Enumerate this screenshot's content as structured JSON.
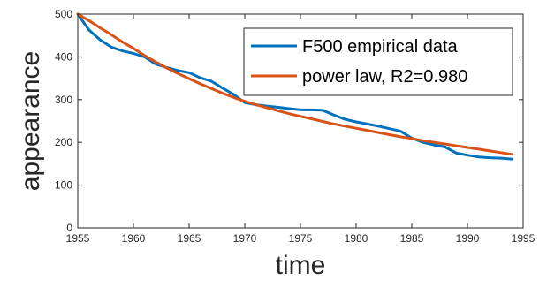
{
  "chart_data": {
    "type": "line",
    "title": "",
    "xlabel": "time",
    "ylabel": "appearance",
    "xlim": [
      1955,
      1995
    ],
    "ylim": [
      0,
      500
    ],
    "x_ticks": [
      "1955",
      "1960",
      "1965",
      "1970",
      "1975",
      "1980",
      "1985",
      "1990",
      "1995"
    ],
    "y_ticks": [
      "0",
      "100",
      "200",
      "300",
      "400",
      "500"
    ],
    "grid": false,
    "legend_position": "top-right",
    "series": [
      {
        "name": "F500 empirical data",
        "color": "#0072BD",
        "x": [
          1955,
          1956,
          1957,
          1958,
          1959,
          1960,
          1961,
          1962,
          1963,
          1964,
          1965,
          1966,
          1967,
          1968,
          1969,
          1970,
          1971,
          1972,
          1973,
          1974,
          1975,
          1976,
          1977,
          1978,
          1979,
          1980,
          1981,
          1982,
          1983,
          1984,
          1985,
          1986,
          1987,
          1988,
          1989,
          1990,
          1991,
          1992,
          1993,
          1994
        ],
        "y": [
          500,
          463,
          440,
          423,
          414,
          408,
          400,
          383,
          375,
          368,
          363,
          351,
          343,
          327,
          312,
          293,
          288,
          285,
          282,
          279,
          276,
          276,
          275,
          264,
          254,
          248,
          243,
          238,
          232,
          226,
          210,
          200,
          194,
          189,
          175,
          170,
          166,
          164,
          163,
          161
        ]
      },
      {
        "name": "power law, R2=0.980",
        "color": "#D95319",
        "x": [
          1955,
          1956,
          1957,
          1958,
          1959,
          1960,
          1961,
          1962,
          1963,
          1964,
          1965,
          1966,
          1967,
          1968,
          1969,
          1970,
          1971,
          1972,
          1973,
          1974,
          1975,
          1976,
          1977,
          1978,
          1979,
          1980,
          1981,
          1982,
          1983,
          1984,
          1985,
          1986,
          1987,
          1988,
          1989,
          1990,
          1991,
          1992,
          1993,
          1994
        ],
        "y": [
          500,
          485,
          468,
          452,
          435,
          420,
          403,
          388,
          374,
          361,
          349,
          337,
          326,
          315,
          305,
          296,
          288,
          281,
          274,
          267,
          261,
          255,
          249,
          243,
          238,
          233,
          228,
          223,
          218,
          213,
          209,
          204,
          200,
          196,
          192,
          188,
          184,
          180,
          176,
          172
        ]
      }
    ]
  }
}
